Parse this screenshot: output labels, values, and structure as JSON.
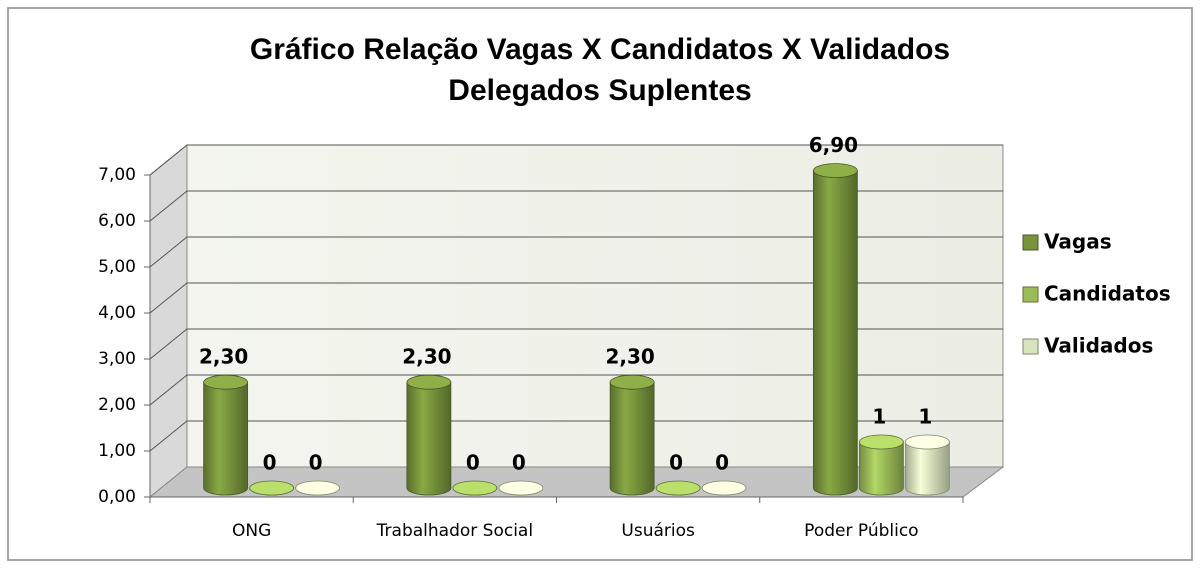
{
  "chart_data": {
    "type": "bar3d",
    "title": [
      "Gráfico Relação Vagas X Candidatos X Validados",
      "Delegados Suplentes"
    ],
    "categories": [
      "ONG",
      "Trabalhador Social",
      "Usuários",
      "Poder Público"
    ],
    "series": [
      {
        "name": "Vagas",
        "color": "#77933c",
        "values": [
          2.3,
          2.3,
          2.3,
          6.9
        ],
        "value_labels": [
          "2,30",
          "2,30",
          "2,30",
          "6,90"
        ]
      },
      {
        "name": "Candidatos",
        "color": "#9bbb59",
        "values": [
          0,
          0,
          0,
          1
        ],
        "value_labels": [
          "0",
          "0",
          "0",
          "1"
        ]
      },
      {
        "name": "Validados",
        "color": "#d7e4bd",
        "values": [
          0,
          0,
          0,
          1
        ],
        "value_labels": [
          "0",
          "0",
          "0",
          "1"
        ]
      }
    ],
    "ylim": [
      0,
      7
    ],
    "yticks": [
      {
        "value": 0,
        "label": "0,00"
      },
      {
        "value": 1,
        "label": "1,00"
      },
      {
        "value": 2,
        "label": "2,00"
      },
      {
        "value": 3,
        "label": "3,00"
      },
      {
        "value": 4,
        "label": "4,00"
      },
      {
        "value": 5,
        "label": "5,00"
      },
      {
        "value": 6,
        "label": "6,00"
      },
      {
        "value": 7,
        "label": "7,00"
      }
    ],
    "grid": true,
    "legend": "right"
  }
}
